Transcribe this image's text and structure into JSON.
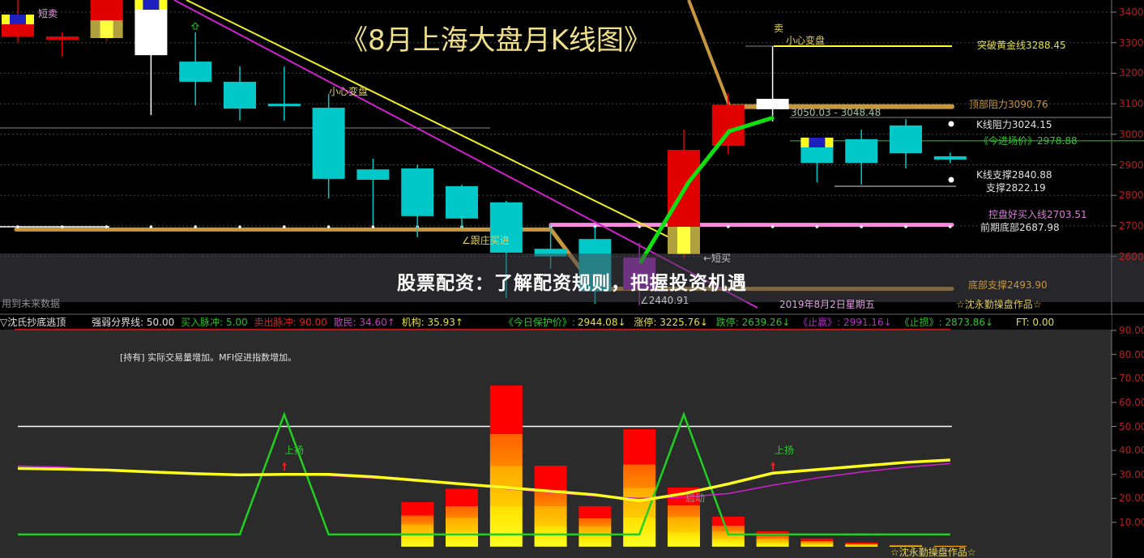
{
  "banner": {
    "title": "股票配资：了解配资规则，把握投资机遇"
  },
  "upper": {
    "title": "《8月上海大盘月K线图》",
    "labels": {
      "short_sell": "短卖",
      "careful_change_1": "小心变盘",
      "follow_buy": "∠跟庄买进",
      "short_buy": "←短买",
      "low_mark": "∠2440.91",
      "date": "2019年8月2日星期五",
      "future_data": "用到未来数据",
      "author": "☆沈永勤操盘作品☆",
      "sell": "卖",
      "careful_change_2": "小心变盘",
      "range": "3050.03 - 3048.48",
      "breakout_gold": "突破黄金线3288.45",
      "top_resistance": "顶部阻力3090.76",
      "k_resistance": "K线阻力3024.15",
      "entry_price": "《今进场价》2978.88",
      "k_support": "K线支撑2840.88",
      "support": "支撑2822.19",
      "control_buy": "控盘好买入线2703.51",
      "prior_bottom": "前期底部2687.98",
      "bottom_support": "底部支撑2493.90"
    }
  },
  "indicator_bar": {
    "name": "▽沈氏抄底逃顶",
    "divide": "强弱分界线: 50.00",
    "buy_pulse": "买入脉冲: 5.00",
    "sell_pulse": "卖出脉冲: 90.00",
    "retail": "散民: 34.60↑",
    "institution": "机构: 35.93↑",
    "protect_label": "《今日保护价》:",
    "protect_value": "2944.08↓",
    "limit_up": "涨停: 3225.76↓",
    "limit_down": "跌停: 2639.26↓",
    "take_profit": "《止赢》: 2991.16↓",
    "stop_loss": "《止损》: 2873.86↓",
    "ft": "FT: 0.00"
  },
  "lower": {
    "note": "[持有] 实际交易量增加。MFI促进指数增加。",
    "rise_1": "上扬",
    "rise_2": "上扬",
    "start": "启动",
    "author": "☆沈永勤操盘作品☆"
  },
  "colors": {
    "up": "#e00000",
    "down": "#00c8c8",
    "background": "#000000",
    "lower_background": "#2b2b2b",
    "axis_text": "#b02020"
  },
  "chart_data": [
    {
      "type": "candlestick",
      "title": "《8月上海大盘月K线图》",
      "y_ticks": [
        3400,
        3300,
        3200,
        3100,
        3000,
        2900,
        2800,
        2700,
        2600
      ],
      "ylim": [
        2440,
        3440
      ],
      "candles": [
        {
          "o": 3320,
          "h": 3440,
          "l": 3300,
          "c": 3392,
          "color": "#e00000"
        },
        {
          "o": 3312,
          "h": 3334,
          "l": 3254,
          "c": 3318,
          "color": "#e00000"
        },
        {
          "o": 3315,
          "h": 3440,
          "l": 3305,
          "c": 3440,
          "color": "#e00000"
        },
        {
          "o": 3259,
          "h": 3440,
          "l": 3063,
          "c": 3440,
          "color": "#ffffff"
        },
        {
          "o": 3238,
          "h": 3334,
          "l": 3095,
          "c": 3172,
          "color": "#00c8c8"
        },
        {
          "o": 3172,
          "h": 3222,
          "l": 3045,
          "c": 3084,
          "color": "#00c8c8"
        },
        {
          "o": 3100,
          "h": 3222,
          "l": 3045,
          "c": 3092,
          "color": "#00c8c8"
        },
        {
          "o": 3087,
          "h": 3132,
          "l": 2790,
          "c": 2854,
          "color": "#00c8c8"
        },
        {
          "o": 2885,
          "h": 2920,
          "l": 2702,
          "c": 2851,
          "color": "#00c8c8"
        },
        {
          "o": 2888,
          "h": 2901,
          "l": 2663,
          "c": 2732,
          "color": "#00c8c8"
        },
        {
          "o": 2830,
          "h": 2835,
          "l": 2692,
          "c": 2724,
          "color": "#00c8c8"
        },
        {
          "o": 2777,
          "h": 2782,
          "l": 2464,
          "c": 2612,
          "color": "#00c8c8"
        },
        {
          "o": 2625,
          "h": 2705,
          "l": 2560,
          "c": 2600,
          "color": "#00c8c8"
        },
        {
          "o": 2657,
          "h": 2697,
          "l": 2445,
          "c": 2485,
          "color": "#00c8c8"
        },
        {
          "o": 2596,
          "h": 2644,
          "l": 2440,
          "c": 2490,
          "color": "#a020c0"
        },
        {
          "o": 2607,
          "h": 3015,
          "l": 2590,
          "c": 2949,
          "color": "#e00000"
        },
        {
          "o": 2962,
          "h": 3135,
          "l": 2935,
          "c": 3097,
          "color": "#e00000"
        },
        {
          "o": 3116,
          "h": 3288,
          "l": 3042,
          "c": 3082,
          "color": "#ffffff"
        },
        {
          "o": 2989,
          "h": 2989,
          "l": 2843,
          "c": 2906,
          "color": "#00c8c8"
        },
        {
          "o": 2984,
          "h": 3015,
          "l": 2835,
          "c": 2906,
          "color": "#00c8c8"
        },
        {
          "o": 3029,
          "h": 3050,
          "l": 2888,
          "c": 2938,
          "color": "#00c8c8"
        },
        {
          "o": 2928,
          "h": 2940,
          "l": 2905,
          "c": 2917,
          "color": "#00c8c8"
        }
      ],
      "levels": [
        {
          "value": 3288.45,
          "color": "#ffff30"
        },
        {
          "value": 3090.76,
          "color": "#c8963c"
        },
        {
          "value": 2978.88,
          "color": "#208020"
        },
        {
          "value": 2703.51,
          "color": "#ff88e0"
        },
        {
          "value": 2687.98,
          "color": "#c8963c"
        },
        {
          "value": 2493.9,
          "color": "#c8963c"
        }
      ]
    },
    {
      "type": "bar+line",
      "y_ticks": [
        90,
        80,
        70,
        60,
        50,
        40,
        30,
        20,
        10
      ],
      "ylim": [
        0,
        95
      ],
      "threshold": 50,
      "bars": [
        null,
        null,
        null,
        null,
        null,
        null,
        null,
        null,
        null,
        18.4,
        24,
        67,
        33.6,
        16.8,
        48.8,
        24.5,
        12.4,
        6.3,
        3.3,
        1.6,
        0.6,
        0.3
      ],
      "series": [
        {
          "color": "#ffff20",
          "values": [
            32.5,
            32.2,
            31.8,
            31,
            30.3,
            29.8,
            30,
            30,
            29,
            27.5,
            26,
            24.5,
            23,
            21.5,
            19,
            22,
            26,
            30.5,
            32,
            33.5,
            35,
            36
          ]
        },
        {
          "color": "#d020d0",
          "values": [
            33.5,
            33,
            32,
            31,
            30.5,
            30,
            30,
            29.5,
            28.5,
            27.5,
            26,
            24,
            22.5,
            21,
            20,
            20.5,
            22,
            25.5,
            28.5,
            31,
            33,
            34.5
          ]
        },
        {
          "color": "#20d020",
          "values": [
            5,
            5,
            5,
            5,
            5,
            5,
            55,
            5,
            5,
            5,
            5,
            5,
            5,
            5,
            5,
            55,
            5,
            5,
            5,
            5,
            5,
            5
          ]
        }
      ]
    }
  ]
}
